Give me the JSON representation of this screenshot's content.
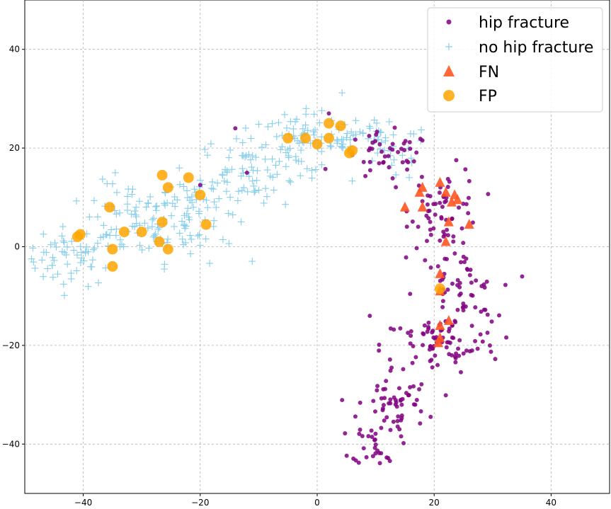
{
  "chart_data": {
    "type": "scatter",
    "xlim": [
      -50,
      50
    ],
    "ylim": [
      -50,
      50
    ],
    "xticks": [
      -40,
      -20,
      0,
      20,
      40
    ],
    "yticks": [
      -40,
      -20,
      0,
      20,
      40
    ],
    "xtick_labels": [
      "−40",
      "−20",
      "0",
      "20",
      "40"
    ],
    "ytick_labels": [
      "−40",
      "−20",
      "0",
      "20",
      "40"
    ],
    "grid": true,
    "legend_position": "top-right",
    "series": [
      {
        "name": "hip fracture",
        "marker": "circle",
        "color": "#800080",
        "clusters": [
          {
            "cx": 12,
            "cy": 18,
            "sx": 4,
            "sy": 2.5,
            "n": 45
          },
          {
            "cx": 22,
            "cy": 8,
            "sx": 3,
            "sy": 4,
            "n": 60
          },
          {
            "cx": 24,
            "cy": -10,
            "sx": 3.5,
            "sy": 5,
            "n": 70
          },
          {
            "cx": 21,
            "cy": -20,
            "sx": 5,
            "sy": 3,
            "n": 70
          },
          {
            "cx": 13,
            "cy": -32,
            "sx": 3,
            "sy": 4,
            "n": 60
          },
          {
            "cx": 10,
            "cy": -40,
            "sx": 2,
            "sy": 2,
            "n": 25
          }
        ],
        "points": [
          [
            -20,
            12.5
          ],
          [
            -14,
            24
          ],
          [
            -12,
            15
          ],
          [
            2,
            27
          ],
          [
            9,
            -14
          ]
        ]
      },
      {
        "name": "no hip fracture",
        "marker": "plus",
        "color": "#87ceeb",
        "clusters": [
          {
            "cx": -42,
            "cy": -2,
            "sx": 4,
            "sy": 3,
            "n": 60
          },
          {
            "cx": -32,
            "cy": 5,
            "sx": 4,
            "sy": 4,
            "n": 70
          },
          {
            "cx": -22,
            "cy": 7,
            "sx": 4,
            "sy": 5,
            "n": 70
          },
          {
            "cx": -12,
            "cy": 15,
            "sx": 4,
            "sy": 4,
            "n": 70
          },
          {
            "cx": -3,
            "cy": 21,
            "sx": 4,
            "sy": 3,
            "n": 60
          },
          {
            "cx": 6,
            "cy": 23,
            "sx": 4,
            "sy": 2.5,
            "n": 40
          },
          {
            "cx": 13,
            "cy": 19,
            "sx": 3,
            "sy": 3,
            "n": 25
          }
        ]
      },
      {
        "name": "FN",
        "marker": "triangle",
        "color": "#ff5722",
        "points": [
          [
            15,
            8
          ],
          [
            17.5,
            11
          ],
          [
            18,
            12
          ],
          [
            18,
            8
          ],
          [
            21,
            13
          ],
          [
            22,
            11
          ],
          [
            23,
            9
          ],
          [
            24,
            9.5
          ],
          [
            23.5,
            10.5
          ],
          [
            22.5,
            5
          ],
          [
            26,
            4.5
          ],
          [
            22,
            1
          ],
          [
            21,
            -5.5
          ],
          [
            21,
            -9
          ],
          [
            21,
            -16
          ],
          [
            22.5,
            -15
          ],
          [
            21,
            -18.5
          ],
          [
            20.7,
            -19.5
          ]
        ]
      },
      {
        "name": "FP",
        "marker": "circle",
        "color": "#ffa500",
        "points": [
          [
            -40.5,
            2.5
          ],
          [
            -41,
            2
          ],
          [
            -35.5,
            8
          ],
          [
            -35,
            -0.5
          ],
          [
            -35,
            -4
          ],
          [
            -33,
            3
          ],
          [
            -30,
            3
          ],
          [
            -27,
            1
          ],
          [
            -26.5,
            14.5
          ],
          [
            -26.5,
            5
          ],
          [
            -25.5,
            12
          ],
          [
            -25.5,
            -0.5
          ],
          [
            -22,
            14
          ],
          [
            -20,
            10.5
          ],
          [
            -19,
            4.5
          ],
          [
            -5,
            22
          ],
          [
            -2,
            22
          ],
          [
            0,
            20.8
          ],
          [
            2,
            25
          ],
          [
            2,
            22
          ],
          [
            4,
            24.5
          ],
          [
            5.5,
            19
          ],
          [
            6,
            19.5
          ],
          [
            21,
            -8.5
          ]
        ]
      }
    ]
  },
  "legend": {
    "items": [
      {
        "label": "hip fracture"
      },
      {
        "label": "no hip fracture"
      },
      {
        "label": "FN"
      },
      {
        "label": "FP"
      }
    ]
  }
}
